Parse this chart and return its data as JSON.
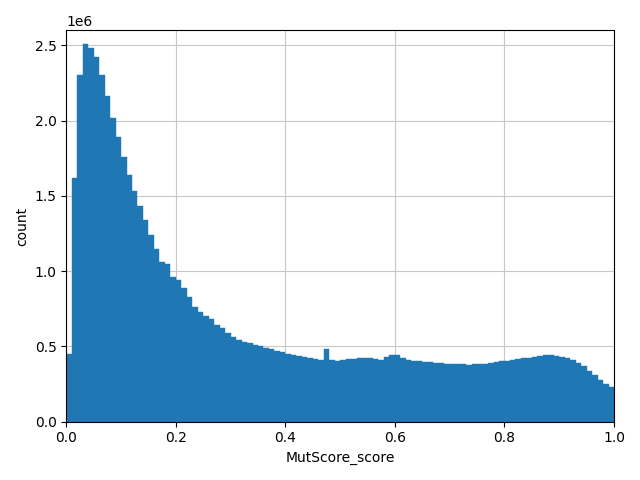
{
  "xlabel": "MutScore_score",
  "ylabel": "count",
  "xlim": [
    0.0,
    1.0
  ],
  "ylim": [
    0,
    2600000
  ],
  "bins": 100,
  "bar_color": "#1f77b4",
  "grid_color": "#c8c8c8",
  "background_color": "#ffffff",
  "figsize": [
    6.4,
    4.8
  ],
  "dpi": 100,
  "yticks": [
    0,
    500000,
    1000000,
    1500000,
    2000000,
    2500000
  ],
  "xticks": [
    0.0,
    0.2,
    0.4,
    0.6,
    0.8,
    1.0
  ],
  "bin_heights": [
    450000,
    1620000,
    2300000,
    2510000,
    2480000,
    2420000,
    2300000,
    2160000,
    2020000,
    1890000,
    1760000,
    1640000,
    1530000,
    1430000,
    1340000,
    1240000,
    1150000,
    1060000,
    1050000,
    960000,
    940000,
    890000,
    830000,
    760000,
    730000,
    700000,
    680000,
    640000,
    620000,
    590000,
    560000,
    540000,
    530000,
    520000,
    510000,
    500000,
    490000,
    480000,
    470000,
    460000,
    450000,
    440000,
    435000,
    430000,
    420000,
    415000,
    410000,
    480000,
    410000,
    405000,
    410000,
    415000,
    415000,
    420000,
    420000,
    420000,
    415000,
    410000,
    430000,
    440000,
    440000,
    420000,
    410000,
    405000,
    400000,
    395000,
    395000,
    390000,
    390000,
    385000,
    385000,
    380000,
    380000,
    375000,
    380000,
    380000,
    385000,
    390000,
    395000,
    400000,
    405000,
    410000,
    415000,
    420000,
    425000,
    430000,
    435000,
    440000,
    440000,
    435000,
    430000,
    420000,
    410000,
    390000,
    370000,
    340000,
    310000,
    280000,
    250000,
    230000
  ]
}
